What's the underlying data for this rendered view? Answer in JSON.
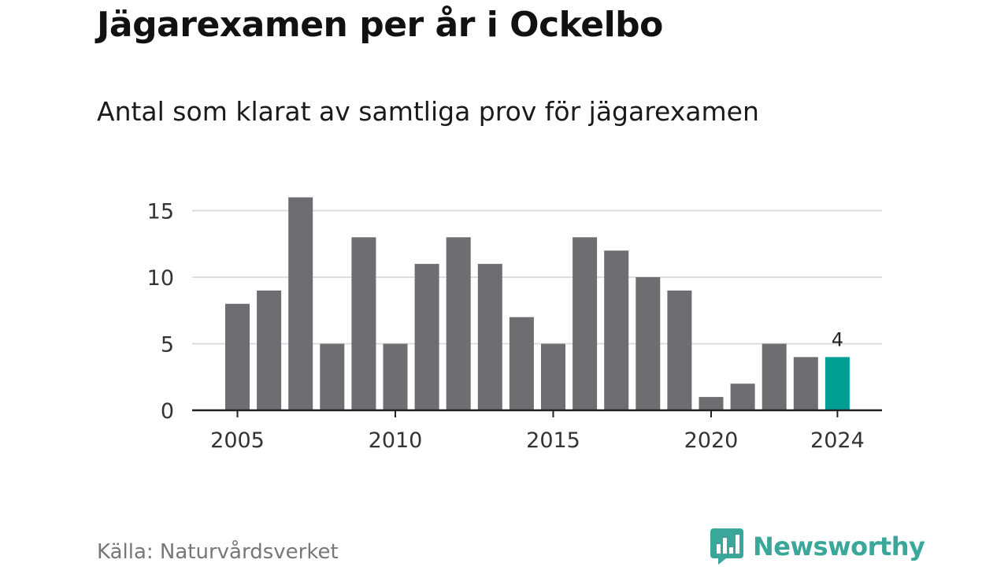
{
  "title": "Jägarexamen per år i Ockelbo",
  "subtitle": "Antal som klarat av samtliga prov för jägarexamen",
  "source": "Källa: Naturvårdsverket",
  "brand": {
    "name": "Newsworthy",
    "icon": "newsworthy-logo-icon",
    "color": "#3aa79a"
  },
  "colors": {
    "bar": "#6e6d72",
    "highlight": "#009e94",
    "grid": "#dddddd",
    "axis": "#222222"
  },
  "chart_data": {
    "type": "bar",
    "x": [
      2005,
      2006,
      2007,
      2008,
      2009,
      2010,
      2011,
      2012,
      2013,
      2014,
      2015,
      2016,
      2017,
      2018,
      2019,
      2020,
      2021,
      2022,
      2023,
      2024
    ],
    "values": [
      8,
      9,
      16,
      5,
      13,
      5,
      11,
      13,
      11,
      7,
      5,
      13,
      12,
      10,
      9,
      1,
      2,
      5,
      4,
      4
    ],
    "highlight": {
      "x": 2024,
      "label": "4"
    },
    "x_ticks": [
      "2005",
      "2010",
      "2015",
      "2020",
      "2024"
    ],
    "y_ticks": [
      "0",
      "5",
      "10",
      "15"
    ],
    "ylim": [
      0,
      16
    ],
    "grid": true,
    "legend": false
  }
}
